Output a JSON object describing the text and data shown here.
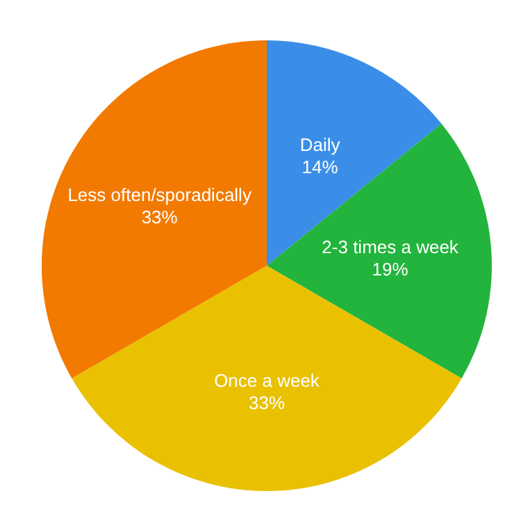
{
  "chart_data": {
    "type": "pie",
    "categories": [
      "Daily",
      "2-3 times a week",
      "Once a week",
      "Less often/sporadically"
    ],
    "values": [
      14,
      19,
      33,
      33
    ],
    "value_labels": [
      "14%",
      "19%",
      "33%",
      "33%"
    ],
    "colors": [
      "#3b8ee8",
      "#22b43c",
      "#e9c100",
      "#f27a00"
    ],
    "legend": false
  }
}
